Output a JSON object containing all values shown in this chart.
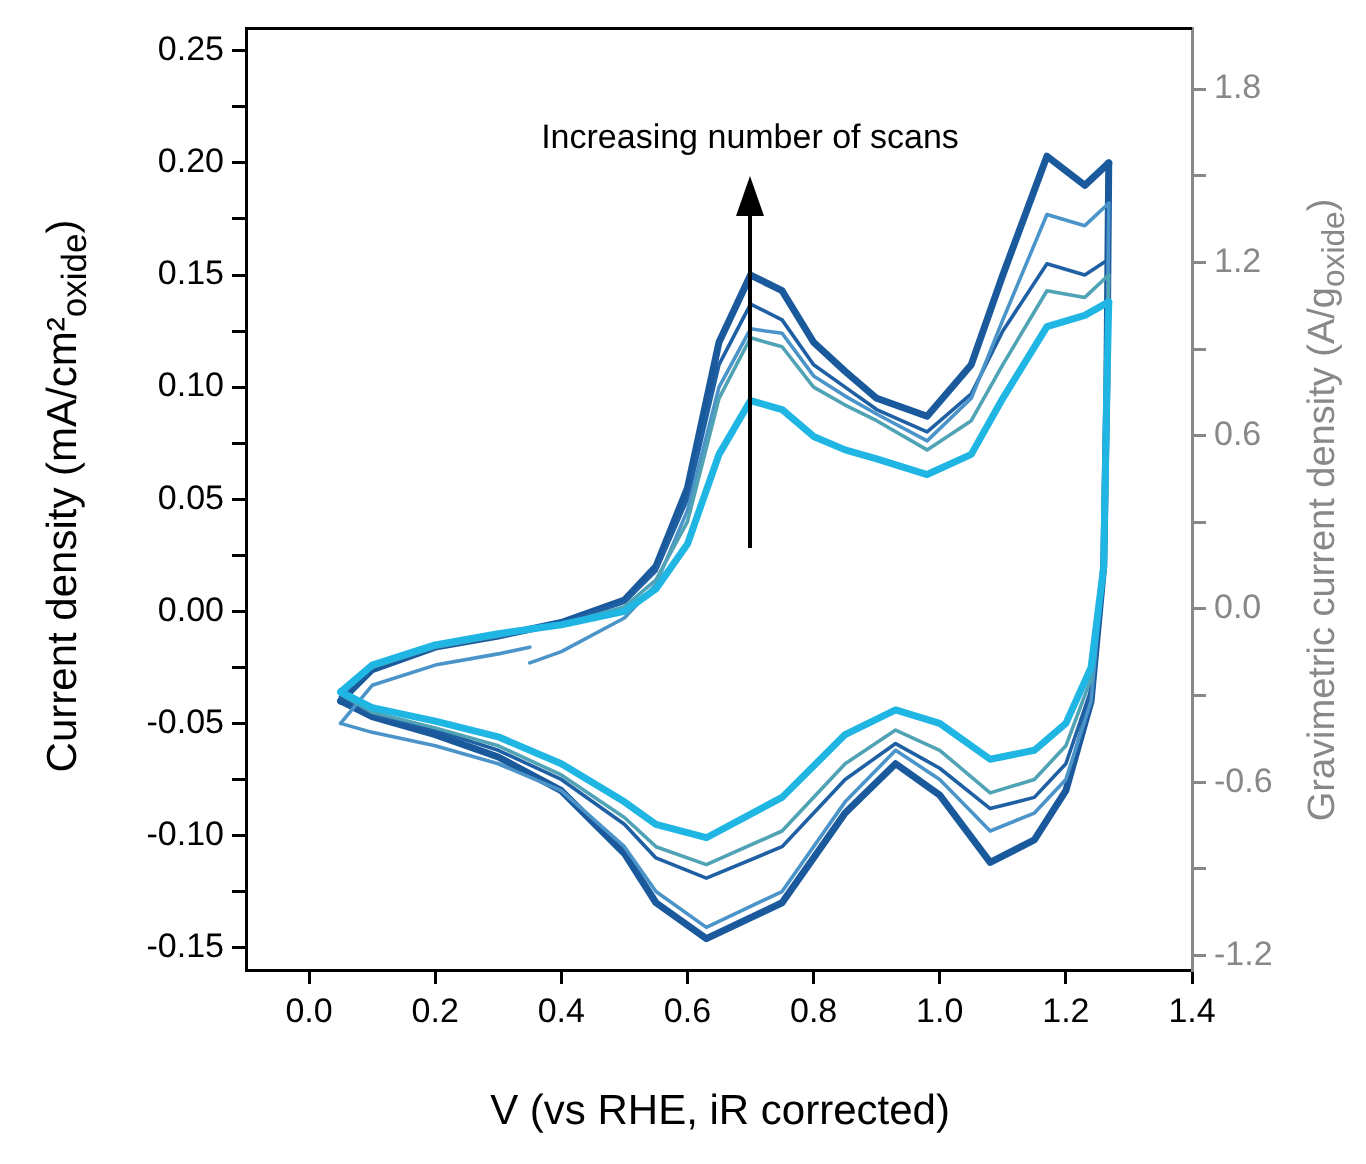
{
  "chart_data": {
    "type": "line",
    "xlabel": "V (vs RHE, iR corrected)",
    "ylabel": "Current density (mA/cm²$_{oxide}$)",
    "y2label": "Gravimetric current density (A/g$_{oxide}$)",
    "annotations": [
      "Increasing number of scans"
    ],
    "series": [
      {
        "color": "#1fb6e4",
        "x": [
          0.05,
          0.1,
          0.2,
          0.3,
          0.4,
          0.5,
          0.55,
          0.6,
          0.65,
          0.7,
          0.75,
          0.8,
          0.85,
          0.9,
          0.98,
          1.05,
          1.1,
          1.17,
          1.23,
          1.268
        ],
        "values": [
          -0.036,
          -0.024,
          -0.015,
          -0.01,
          -0.006,
          0.0,
          0.01,
          0.03,
          0.07,
          0.094,
          0.09,
          0.078,
          0.072,
          0.068,
          0.061,
          0.07,
          0.095,
          0.127,
          0.132,
          0.138
        ]
      },
      {
        "color": "#1fb6e4",
        "x": [
          0.05,
          0.1,
          0.2,
          0.3,
          0.4,
          0.5,
          0.55,
          0.63,
          0.75,
          0.85,
          0.93,
          1.0,
          1.08,
          1.15,
          1.2,
          1.24,
          1.26,
          1.265,
          1.268
        ],
        "values": [
          -0.036,
          -0.043,
          -0.049,
          -0.056,
          -0.068,
          -0.085,
          -0.095,
          -0.101,
          -0.083,
          -0.055,
          -0.044,
          -0.05,
          -0.066,
          -0.062,
          -0.05,
          -0.025,
          0.02,
          0.1,
          0.138
        ]
      },
      {
        "color": "#4fa3b5",
        "x": [
          0.05,
          0.1,
          0.2,
          0.3,
          0.4,
          0.5,
          0.55,
          0.6,
          0.65,
          0.7,
          0.75,
          0.8,
          0.85,
          0.9,
          0.98,
          1.05,
          1.1,
          1.17,
          1.23,
          1.268
        ],
        "values": [
          -0.037,
          -0.025,
          -0.016,
          -0.011,
          -0.006,
          0.002,
          0.014,
          0.04,
          0.095,
          0.122,
          0.118,
          0.1,
          0.092,
          0.085,
          0.072,
          0.085,
          0.11,
          0.143,
          0.14,
          0.15
        ]
      },
      {
        "color": "#4fa3b5",
        "x": [
          0.05,
          0.1,
          0.2,
          0.3,
          0.4,
          0.5,
          0.55,
          0.63,
          0.75,
          0.85,
          0.93,
          1.0,
          1.08,
          1.15,
          1.2,
          1.24,
          1.26,
          1.265,
          1.268
        ],
        "values": [
          -0.037,
          -0.045,
          -0.052,
          -0.06,
          -0.073,
          -0.092,
          -0.105,
          -0.113,
          -0.098,
          -0.068,
          -0.053,
          -0.062,
          -0.081,
          -0.075,
          -0.06,
          -0.03,
          0.02,
          0.1,
          0.15
        ]
      },
      {
        "color": "#4a94c9",
        "x": [
          0.05,
          0.1,
          0.2,
          0.3,
          0.35
        ],
        "values": [
          -0.05,
          -0.033,
          -0.024,
          -0.019,
          -0.016
        ]
      },
      {
        "color": "#4a94c9",
        "x": [
          0.35,
          0.4,
          0.5,
          0.55,
          0.6,
          0.65,
          0.7,
          0.75,
          0.8,
          0.85,
          0.9,
          0.98,
          1.05,
          1.1,
          1.17,
          1.23,
          1.268
        ],
        "values": [
          -0.023,
          -0.018,
          -0.003,
          0.012,
          0.045,
          0.1,
          0.126,
          0.124,
          0.105,
          0.096,
          0.088,
          0.076,
          0.095,
          0.13,
          0.177,
          0.172,
          0.182
        ]
      },
      {
        "color": "#4a94c9",
        "x": [
          0.05,
          0.1,
          0.2,
          0.3,
          0.4,
          0.5,
          0.55,
          0.63,
          0.75,
          0.85,
          0.93,
          1.0,
          1.08,
          1.15,
          1.2,
          1.24,
          1.26,
          1.265,
          1.268
        ],
        "values": [
          -0.05,
          -0.054,
          -0.06,
          -0.068,
          -0.08,
          -0.105,
          -0.125,
          -0.141,
          -0.125,
          -0.085,
          -0.062,
          -0.075,
          -0.098,
          -0.09,
          -0.075,
          -0.04,
          0.02,
          0.1,
          0.182
        ]
      },
      {
        "color": "#1f5fa3",
        "x": [
          0.05,
          0.1,
          0.2,
          0.3,
          0.4,
          0.5,
          0.55,
          0.6,
          0.65,
          0.7,
          0.75,
          0.8,
          0.85,
          0.9,
          0.98,
          1.05,
          1.1,
          1.17,
          1.23,
          1.268
        ],
        "values": [
          -0.038,
          -0.025,
          -0.016,
          -0.011,
          -0.005,
          0.004,
          0.018,
          0.05,
          0.11,
          0.137,
          0.13,
          0.11,
          0.1,
          0.09,
          0.08,
          0.097,
          0.125,
          0.155,
          0.15,
          0.157
        ]
      },
      {
        "color": "#1f5fa3",
        "x": [
          0.05,
          0.1,
          0.2,
          0.3,
          0.4,
          0.5,
          0.55,
          0.63,
          0.75,
          0.85,
          0.93,
          1.0,
          1.08,
          1.15,
          1.2,
          1.24,
          1.26,
          1.265,
          1.268
        ],
        "values": [
          -0.038,
          -0.046,
          -0.053,
          -0.062,
          -0.075,
          -0.095,
          -0.11,
          -0.119,
          -0.105,
          -0.075,
          -0.059,
          -0.07,
          -0.088,
          -0.083,
          -0.068,
          -0.035,
          0.02,
          0.1,
          0.157
        ]
      },
      {
        "color": "#1a5a9c",
        "x": [
          0.05,
          0.1,
          0.2,
          0.3,
          0.4,
          0.5,
          0.55,
          0.6,
          0.65,
          0.7,
          0.75,
          0.8,
          0.85,
          0.9,
          0.98,
          1.05,
          1.1,
          1.17,
          1.23,
          1.268
        ],
        "values": [
          -0.04,
          -0.026,
          -0.016,
          -0.011,
          -0.005,
          0.005,
          0.02,
          0.055,
          0.12,
          0.15,
          0.143,
          0.12,
          0.107,
          0.095,
          0.087,
          0.11,
          0.15,
          0.203,
          0.19,
          0.2
        ]
      },
      {
        "color": "#1a5a9c",
        "x": [
          0.05,
          0.1,
          0.2,
          0.3,
          0.4,
          0.5,
          0.55,
          0.63,
          0.75,
          0.85,
          0.93,
          1.0,
          1.08,
          1.15,
          1.2,
          1.24,
          1.26,
          1.265,
          1.268
        ],
        "values": [
          -0.04,
          -0.047,
          -0.055,
          -0.065,
          -0.08,
          -0.108,
          -0.13,
          -0.146,
          -0.13,
          -0.09,
          -0.068,
          -0.082,
          -0.112,
          -0.102,
          -0.08,
          -0.04,
          0.02,
          0.1,
          0.2
        ]
      }
    ],
    "xlim": [
      -0.1,
      1.4
    ],
    "xticks": [
      {
        "value": 0,
        "label": "0.0"
      },
      0.2,
      0.4,
      0.6,
      0.8,
      {
        "value": 1,
        "label": "1.0"
      },
      1.2,
      1.4
    ],
    "ylim": [
      -0.16,
      0.26
    ],
    "yticks": [
      {
        "value": -0.15,
        "label": "-0.15"
      },
      {
        "value": -0.125,
        "label": null
      },
      {
        "value": -0.1,
        "label": "-0.10"
      },
      {
        "value": -0.075,
        "label": null
      },
      -0.05,
      {
        "value": -0.025,
        "label": null
      },
      {
        "value": 0,
        "label": "0.00"
      },
      {
        "value": 0.025,
        "label": null
      },
      0.05,
      {
        "value": 0.075,
        "label": null
      },
      {
        "value": 0.1,
        "label": "0.10"
      },
      {
        "value": 0.125,
        "label": null
      },
      0.15,
      {
        "value": 0.175,
        "label": null
      },
      {
        "value": 0.2,
        "label": "0.20"
      },
      {
        "value": 0.225,
        "label": null
      },
      0.25
    ],
    "y2lim": [
      -1.25,
      2.01
    ],
    "y2ticks": [
      -1.2,
      {
        "value": -0.9,
        "label": null
      },
      -0.6,
      {
        "value": -0.3,
        "label": null
      },
      {
        "value": 0,
        "label": "0.0"
      },
      {
        "value": 0.3,
        "label": null
      },
      0.6,
      {
        "value": 0.9,
        "label": null
      },
      1.2,
      {
        "value": 1.5,
        "label": null
      },
      1.8
    ],
    "legend": false
  }
}
